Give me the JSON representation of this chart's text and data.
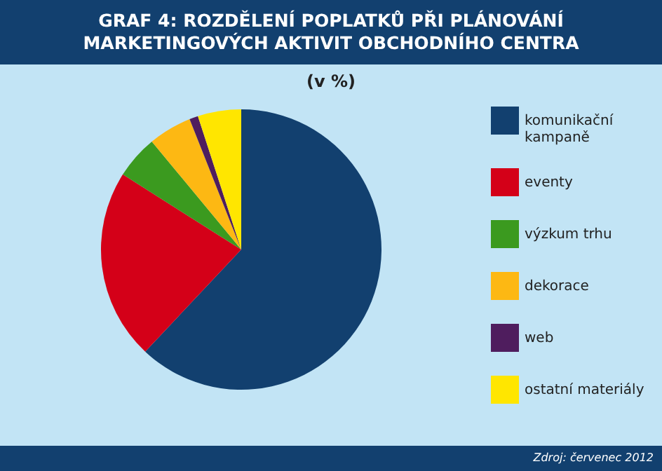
{
  "chart_data": {
    "type": "pie",
    "title": "GRAF 4: ROZDĚLENÍ POPLATKŮ PŘI PLÁNOVÁNÍ MARKETINGOVÝCH AKTIVIT OBCHODNÍHO CENTRA",
    "subtitle": "(v %)",
    "categories": [
      "komunikační kampaně",
      "eventy",
      "výzkum trhu",
      "dekorace",
      "web",
      "ostatní materiály"
    ],
    "values": [
      62,
      22,
      5,
      5,
      1,
      5
    ],
    "colors": [
      "#12406f",
      "#d40018",
      "#3b9a1f",
      "#fdb813",
      "#4f1d5e",
      "#ffe600"
    ],
    "legend": "right",
    "annotations": [
      "Zdroj: červenec 2012"
    ]
  }
}
